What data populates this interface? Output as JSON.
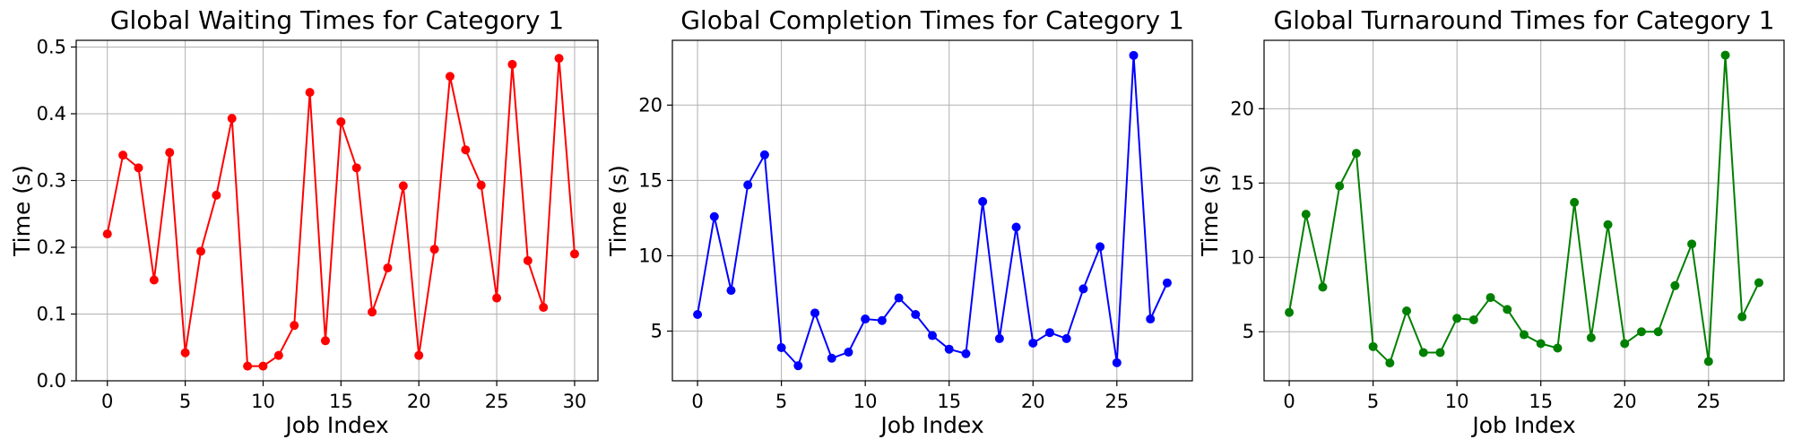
{
  "chart_data": [
    {
      "type": "line",
      "title": "Global Waiting Times for Category 1",
      "xlabel": "Job Index",
      "ylabel": "Time (s)",
      "xlim": [
        -2,
        31.5
      ],
      "ylim": [
        0,
        0.51
      ],
      "xticks": [
        0,
        5,
        10,
        15,
        20,
        25,
        30
      ],
      "yticks": [
        0.0,
        0.1,
        0.2,
        0.3,
        0.4,
        0.5
      ],
      "ytick_labels": [
        "0.0",
        "0.1",
        "0.2",
        "0.3",
        "0.4",
        "0.5"
      ],
      "grid": true,
      "markers": true,
      "color": "#ff0000",
      "x": [
        0,
        1,
        2,
        3,
        4,
        5,
        6,
        7,
        8,
        9,
        10,
        11,
        12,
        13,
        14,
        15,
        16,
        17,
        18,
        19,
        20,
        21,
        22,
        23,
        24,
        25,
        26,
        27,
        28,
        29,
        30
      ],
      "values": [
        0.22,
        0.338,
        0.319,
        0.151,
        0.342,
        0.042,
        0.194,
        0.278,
        0.393,
        0.022,
        0.022,
        0.038,
        0.083,
        0.432,
        0.06,
        0.388,
        0.319,
        0.103,
        0.169,
        0.292,
        0.038,
        0.197,
        0.456,
        0.346,
        0.293,
        0.124,
        0.474,
        0.18,
        0.11,
        0.483,
        0.19
      ]
    },
    {
      "type": "line",
      "title": "Global Completion Times for Category 1",
      "xlabel": "Job Index",
      "ylabel": "Time (s)",
      "xlim": [
        -1.5,
        29.5
      ],
      "ylim": [
        1.7,
        24.3
      ],
      "xticks": [
        0,
        5,
        10,
        15,
        20,
        25
      ],
      "yticks": [
        5,
        10,
        15,
        20
      ],
      "ytick_labels": [
        "5",
        "10",
        "15",
        "20"
      ],
      "grid": true,
      "markers": true,
      "color": "#0000ff",
      "x": [
        0,
        1,
        2,
        3,
        4,
        5,
        6,
        7,
        8,
        9,
        10,
        11,
        12,
        13,
        14,
        15,
        16,
        17,
        18,
        19,
        20,
        21,
        22,
        23,
        24,
        25,
        26,
        27,
        28
      ],
      "values": [
        6.1,
        12.6,
        7.7,
        14.7,
        16.7,
        3.9,
        2.7,
        6.2,
        3.2,
        3.6,
        5.8,
        5.7,
        7.2,
        6.1,
        4.7,
        3.8,
        3.5,
        13.6,
        4.5,
        11.9,
        4.2,
        4.9,
        4.5,
        7.8,
        10.6,
        2.9,
        23.3,
        5.8,
        8.2
      ]
    },
    {
      "type": "line",
      "title": "Global Turnaround Times for Category 1",
      "xlabel": "Job Index",
      "ylabel": "Time (s)",
      "xlim": [
        -1.5,
        29.5
      ],
      "ylim": [
        1.7,
        24.6
      ],
      "xticks": [
        0,
        5,
        10,
        15,
        20,
        25
      ],
      "yticks": [
        5,
        10,
        15,
        20
      ],
      "ytick_labels": [
        "5",
        "10",
        "15",
        "20"
      ],
      "grid": true,
      "markers": true,
      "color": "#008000",
      "x": [
        0,
        1,
        2,
        3,
        4,
        5,
        6,
        7,
        8,
        9,
        10,
        11,
        12,
        13,
        14,
        15,
        16,
        17,
        18,
        19,
        20,
        21,
        22,
        23,
        24,
        25,
        26,
        27,
        28
      ],
      "values": [
        6.3,
        12.9,
        8.0,
        14.8,
        17.0,
        4.0,
        2.9,
        6.4,
        3.6,
        3.6,
        5.9,
        5.8,
        7.3,
        6.5,
        4.8,
        4.2,
        3.9,
        13.7,
        4.6,
        12.2,
        4.2,
        5.0,
        5.0,
        8.1,
        10.9,
        3.0,
        23.6,
        6.0,
        8.3
      ]
    }
  ]
}
